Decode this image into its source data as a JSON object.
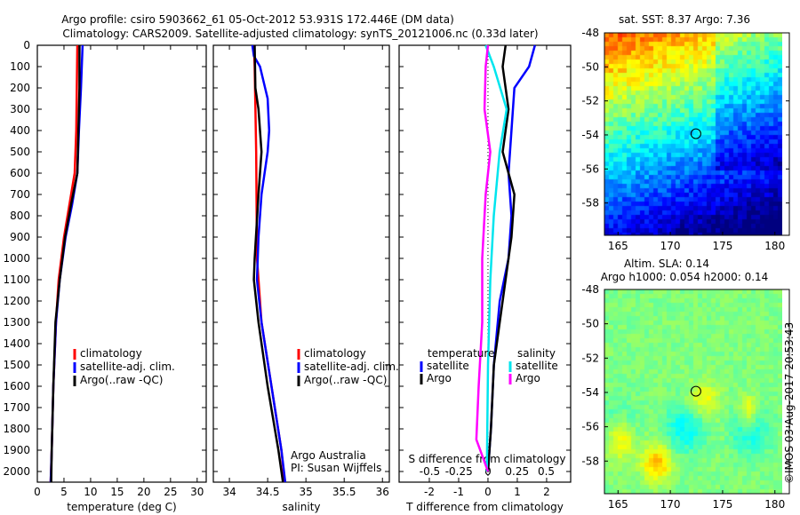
{
  "title_line1": "Argo profile: csiro 5903662_61 05-Oct-2012 53.931S 172.446E (DM data)",
  "title_line2": "Climatology: CARS2009. Satellite-adjusted climatology: synTS_20121006.nc (0.33d later)",
  "depth_ticks": [
    0,
    100,
    200,
    300,
    400,
    500,
    600,
    700,
    800,
    900,
    1000,
    1100,
    1200,
    1300,
    1400,
    1500,
    1600,
    1700,
    1800,
    1900,
    2000
  ],
  "colors": {
    "climatology": "#ff0000",
    "satellite": "#0000ff",
    "argo": "#000000",
    "s_satellite": "#00e5ee",
    "s_argo": "#ff00ff"
  },
  "chart_data": [
    {
      "type": "line",
      "name": "temperature",
      "xlabel": "temperature (deg C)",
      "xlim": [
        0,
        31.7
      ],
      "ylim": [
        0,
        2050
      ],
      "y_reversed": true,
      "xticks": [
        0,
        5,
        10,
        15,
        20,
        25,
        30
      ],
      "legend": [
        "climatology",
        "satellite-adj. clim.",
        "Argo(..raw -QC)"
      ],
      "series": [
        {
          "name": "climatology",
          "color": "#ff0000",
          "depth": [
            0,
            400,
            600,
            750,
            900,
            1100,
            1300,
            1600,
            1900,
            2050
          ],
          "values": [
            7.5,
            7.3,
            7.0,
            6.0,
            5.0,
            4.0,
            3.5,
            3.0,
            2.7,
            2.5
          ]
        },
        {
          "name": "satellite-adj. clim.",
          "color": "#0000ff",
          "depth": [
            0,
            200,
            400,
            600,
            750,
            900,
            1100,
            1300,
            1600,
            1900,
            2050
          ],
          "values": [
            8.5,
            8.2,
            7.8,
            7.5,
            6.5,
            5.3,
            4.2,
            3.5,
            3.0,
            2.7,
            2.5
          ]
        },
        {
          "name": "Argo(..raw -QC)",
          "color": "#000000",
          "depth": [
            0,
            200,
            400,
            600,
            750,
            900,
            1100,
            1300,
            1600,
            1900,
            2050
          ],
          "values": [
            7.9,
            7.9,
            7.7,
            7.5,
            6.3,
            5.2,
            4.2,
            3.4,
            3.0,
            2.7,
            2.6
          ]
        }
      ]
    },
    {
      "type": "line",
      "name": "salinity",
      "xlabel": "salinity",
      "xlim": [
        33.79,
        36.09
      ],
      "ylim": [
        0,
        2050
      ],
      "y_reversed": true,
      "xticks": [
        34,
        34.5,
        35,
        35.5,
        36
      ],
      "legend": [
        "climatology",
        "satellite-adj. clim.",
        "Argo(..raw -QC)"
      ],
      "annotation": [
        "Argo Australia",
        "PI: Susan Wijffels"
      ],
      "series": [
        {
          "name": "climatology",
          "color": "#ff0000",
          "depth": [
            0,
            100,
            500,
            1000,
            1300,
            1600,
            1900,
            2050
          ],
          "values": [
            34.32,
            34.33,
            34.35,
            34.36,
            34.42,
            34.55,
            34.68,
            34.72
          ]
        },
        {
          "name": "satellite-adj. clim.",
          "color": "#0000ff",
          "depth": [
            0,
            50,
            100,
            250,
            400,
            500,
            700,
            900,
            1100,
            1300,
            1600,
            1900,
            2050
          ],
          "values": [
            34.3,
            34.32,
            34.4,
            34.5,
            34.52,
            34.5,
            34.42,
            34.38,
            34.36,
            34.42,
            34.55,
            34.68,
            34.73
          ]
        },
        {
          "name": "Argo(..raw -QC)",
          "color": "#000000",
          "depth": [
            0,
            200,
            300,
            500,
            700,
            1000,
            1100,
            1300,
            1600,
            1900,
            2050
          ],
          "values": [
            34.33,
            34.34,
            34.38,
            34.42,
            34.38,
            34.33,
            34.32,
            34.38,
            34.5,
            34.64,
            34.7
          ]
        }
      ]
    },
    {
      "type": "line",
      "name": "difference",
      "xlabel": "T difference from climatology",
      "xlabel2": "S difference from climatology",
      "xlim": [
        -3.03,
        2.82
      ],
      "xlim_s": [
        -0.758,
        0.705
      ],
      "ylim": [
        0,
        2050
      ],
      "y_reversed": true,
      "xticks": [
        -2,
        -1,
        0,
        1,
        2
      ],
      "xticks_s": [
        "-0.5",
        "-0.25",
        "0",
        "0.25",
        "0.5"
      ],
      "legend_t_title": "temperature",
      "legend_s_title": "salinity",
      "series": [
        {
          "name": "satellite",
          "group": "T",
          "color": "#0000ff",
          "depth": [
            0,
            100,
            200,
            400,
            600,
            800,
            1000,
            1200,
            1500,
            1800,
            2000
          ],
          "values": [
            1.6,
            1.4,
            0.9,
            0.8,
            0.7,
            0.8,
            0.7,
            0.4,
            0.2,
            0.1,
            0
          ]
        },
        {
          "name": "Argo",
          "group": "T",
          "color": "#000000",
          "depth": [
            0,
            100,
            300,
            500,
            700,
            900,
            1100,
            1300,
            1500,
            1800,
            2000
          ],
          "values": [
            0.6,
            0.5,
            0.7,
            0.5,
            0.9,
            0.8,
            0.6,
            0.4,
            0.2,
            0.1,
            0
          ]
        },
        {
          "name": "satellite",
          "group": "S",
          "color": "#00e5ee",
          "depth": [
            0,
            100,
            300,
            500,
            800,
            1100,
            1500,
            2000
          ],
          "values": [
            -0.02,
            0.05,
            0.16,
            0.1,
            0.05,
            0.02,
            0,
            -0.01
          ]
        },
        {
          "name": "Argo",
          "group": "S",
          "color": "#ff00ff",
          "depth": [
            0,
            100,
            300,
            500,
            700,
            1000,
            1300,
            1600,
            1850,
            2000
          ],
          "values": [
            0,
            -0.02,
            -0.03,
            0.02,
            -0.02,
            -0.05,
            -0.05,
            -0.08,
            -0.1,
            0
          ]
        }
      ]
    },
    {
      "type": "heatmap",
      "name": "sst-map",
      "title": "sat. SST: 8.37  Argo: 7.36",
      "xlim": [
        163.7,
        180.7
      ],
      "ylim": [
        -59.9,
        -48
      ],
      "xticks": [
        165,
        170,
        175,
        180
      ],
      "yticks": [
        -48,
        -50,
        -52,
        -54,
        -56,
        -58
      ],
      "marker": {
        "lon": 172.446,
        "lat": -53.931
      }
    },
    {
      "type": "heatmap",
      "name": "sla-map",
      "title": "Altim. SLA: 0.14",
      "subtitle": "Argo h1000: 0.054 h2000: 0.14",
      "xlim": [
        163.7,
        180.7
      ],
      "ylim": [
        -59.9,
        -48
      ],
      "xticks": [
        165,
        170,
        175,
        180
      ],
      "yticks": [
        -48,
        -50,
        -52,
        -54,
        -56,
        -58
      ],
      "marker": {
        "lon": 172.446,
        "lat": -53.931
      }
    }
  ],
  "credit": "©IMOS 03-Aug-2017 20:53:43"
}
